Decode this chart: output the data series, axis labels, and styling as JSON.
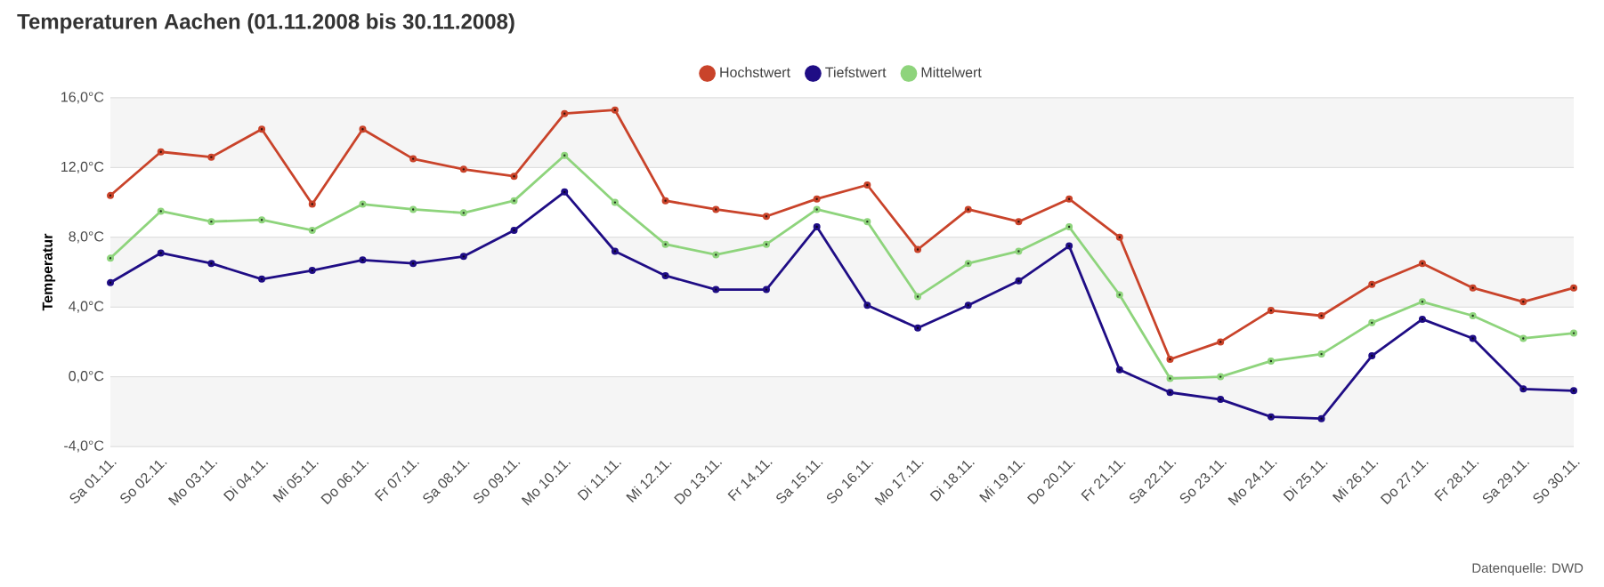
{
  "chart_data": {
    "type": "line",
    "title": "Temperaturen Aachen (01.11.2008 bis 30.11.2008)",
    "ylabel": "Temperatur",
    "categories": [
      "Sa 01.11.",
      "So 02.11.",
      "Mo 03.11.",
      "Di 04.11.",
      "Mi 05.11.",
      "Do 06.11.",
      "Fr 07.11.",
      "Sa 08.11.",
      "So 09.11.",
      "Mo 10.11.",
      "Di 11.11.",
      "Mi 12.11.",
      "Do 13.11.",
      "Fr 14.11.",
      "Sa 15.11.",
      "So 16.11.",
      "Mo 17.11.",
      "Di 18.11.",
      "Mi 19.11.",
      "Do 20.11.",
      "Fr 21.11.",
      "Sa 22.11.",
      "So 23.11.",
      "Mo 24.11.",
      "Di 25.11.",
      "Mi 26.11.",
      "Do 27.11.",
      "Fr 28.11.",
      "Sa 29.11.",
      "So 30.11."
    ],
    "series": [
      {
        "name": "Hochstwert",
        "color": "#c9432a",
        "values": [
          10.4,
          12.9,
          12.6,
          14.2,
          9.9,
          14.2,
          12.5,
          11.9,
          11.5,
          15.1,
          15.3,
          10.1,
          9.6,
          9.2,
          10.2,
          11.0,
          7.3,
          9.6,
          8.9,
          10.2,
          8.0,
          1.0,
          2.0,
          3.8,
          3.5,
          5.3,
          6.5,
          5.1,
          4.3,
          5.1
        ]
      },
      {
        "name": "Tiefstwert",
        "color": "#1f0d85",
        "values": [
          5.4,
          7.1,
          6.5,
          5.6,
          6.1,
          6.7,
          6.5,
          6.9,
          8.4,
          10.6,
          7.2,
          5.8,
          5.0,
          5.0,
          8.6,
          4.1,
          2.8,
          4.1,
          5.5,
          7.5,
          0.4,
          -0.9,
          -1.3,
          -2.3,
          -2.4,
          1.2,
          3.3,
          2.2,
          -0.7,
          -0.8
        ]
      },
      {
        "name": "Mittelwert",
        "color": "#8ed47c",
        "values": [
          6.8,
          9.5,
          8.9,
          9.0,
          8.4,
          9.9,
          9.6,
          9.4,
          10.1,
          12.7,
          10.0,
          7.6,
          7.0,
          7.6,
          9.6,
          8.9,
          4.6,
          6.5,
          7.2,
          8.6,
          4.7,
          -0.1,
          0.0,
          0.9,
          1.3,
          3.1,
          4.3,
          3.5,
          2.2,
          2.5
        ]
      }
    ],
    "ylim": [
      -4,
      16
    ],
    "yticks": [
      {
        "value": -4,
        "label": "-4,0°C"
      },
      {
        "value": 0,
        "label": "0,0°C"
      },
      {
        "value": 4,
        "label": "4,0°C"
      },
      {
        "value": 8,
        "label": "8,0°C"
      },
      {
        "value": 12,
        "label": "12,0°C"
      },
      {
        "value": 16,
        "label": "16,0°C"
      }
    ],
    "bands": [
      {
        "axis": "y",
        "from": -4,
        "to": 0,
        "color": "#f5f5f5"
      },
      {
        "axis": "y",
        "from": 4,
        "to": 8,
        "color": "#f5f5f5"
      },
      {
        "axis": "y",
        "from": 12,
        "to": 16,
        "color": "#f5f5f5"
      }
    ],
    "grid": "y",
    "legend": "top",
    "marker": "circle",
    "line_style": "solid",
    "annotations": [
      "Datenquelle: DWD"
    ]
  }
}
